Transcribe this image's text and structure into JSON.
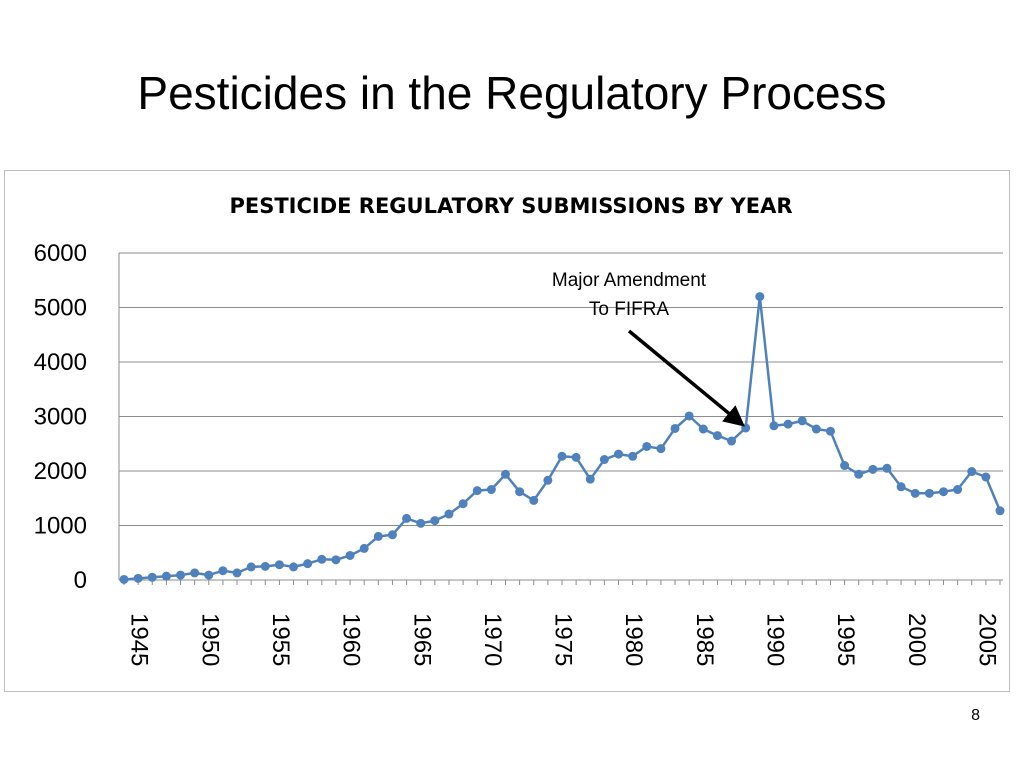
{
  "slide": {
    "title": "Pesticides in the Regulatory Process",
    "number": "8"
  },
  "chart_data": {
    "type": "line",
    "title": "PESTICIDE REGULATORY SUBMISSIONS BY YEAR",
    "xlabel": "",
    "ylabel": "",
    "ylim": [
      0,
      6000
    ],
    "yticks": [
      0,
      1000,
      2000,
      3000,
      4000,
      5000,
      6000
    ],
    "xticks": [
      1945,
      1950,
      1955,
      1960,
      1965,
      1970,
      1975,
      1980,
      1985,
      1990,
      1995,
      2000,
      2005
    ],
    "xlim": [
      1945,
      2007
    ],
    "grid": "horizontal",
    "legend": "none",
    "line_color": "#4f81bd",
    "x": [
      1945,
      1946,
      1947,
      1948,
      1949,
      1950,
      1951,
      1952,
      1953,
      1954,
      1955,
      1956,
      1957,
      1958,
      1959,
      1960,
      1961,
      1962,
      1963,
      1964,
      1965,
      1966,
      1967,
      1968,
      1969,
      1970,
      1971,
      1972,
      1973,
      1974,
      1975,
      1976,
      1977,
      1978,
      1979,
      1980,
      1981,
      1982,
      1983,
      1984,
      1985,
      1986,
      1987,
      1988,
      1989,
      1990,
      1991,
      1992,
      1993,
      1994,
      1995,
      1996,
      1997,
      1998,
      1999,
      2000,
      2001,
      2002,
      2003,
      2004,
      2005,
      2006,
      2007
    ],
    "values": [
      10,
      30,
      50,
      70,
      90,
      130,
      90,
      170,
      130,
      240,
      250,
      280,
      240,
      300,
      380,
      370,
      450,
      580,
      800,
      830,
      1130,
      1040,
      1090,
      1210,
      1400,
      1640,
      1660,
      1940,
      1620,
      1460,
      1830,
      2270,
      2250,
      1850,
      2210,
      2310,
      2270,
      2450,
      2410,
      2780,
      3010,
      2770,
      2650,
      2550,
      2790,
      5200,
      2830,
      2860,
      2920,
      2770,
      2730,
      2100,
      1940,
      2030,
      2050,
      1710,
      1590,
      1590,
      1620,
      1660,
      1990,
      1890,
      1270
    ],
    "annotation": {
      "line1": "Major Amendment",
      "line2": "To FIFRA",
      "target_year": 1989,
      "target_value": 2790
    }
  }
}
